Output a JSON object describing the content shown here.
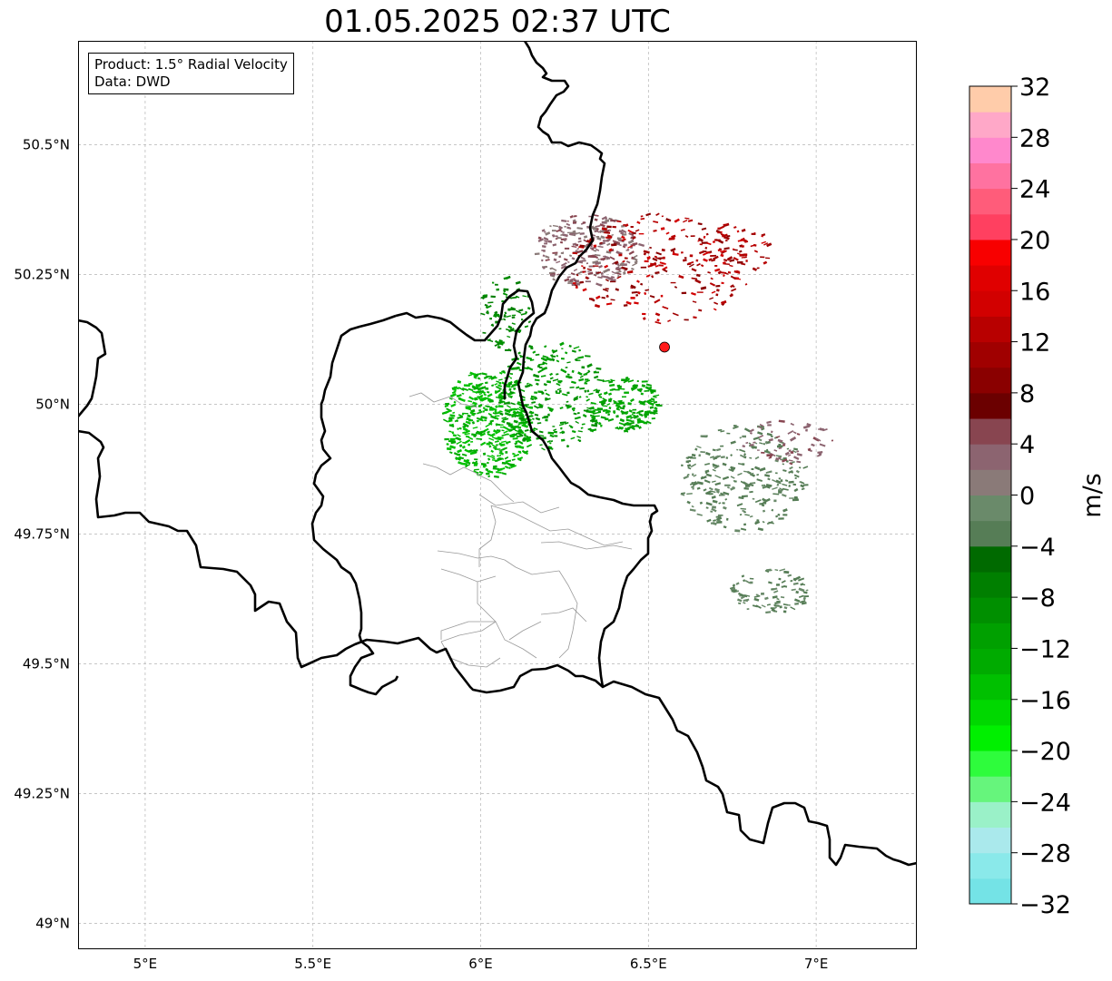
{
  "map": {
    "title": "01.05.2025 02:37 UTC",
    "info_box": {
      "product": "Product: 1.5° Radial Velocity",
      "data": "Data: DWD"
    },
    "lon_range": [
      4.8,
      7.3
    ],
    "lat_range": [
      48.95,
      50.7
    ],
    "lon_ticks": [
      {
        "value": 5.0,
        "label": "5°E"
      },
      {
        "value": 5.5,
        "label": "5.5°E"
      },
      {
        "value": 6.0,
        "label": "6°E"
      },
      {
        "value": 6.5,
        "label": "6.5°E"
      },
      {
        "value": 7.0,
        "label": "7°E"
      }
    ],
    "lat_ticks": [
      {
        "value": 50.5,
        "label": "50.5°N"
      },
      {
        "value": 50.25,
        "label": "50.25°N"
      },
      {
        "value": 50.0,
        "label": "50°N"
      },
      {
        "value": 49.75,
        "label": "49.75°N"
      },
      {
        "value": 49.5,
        "label": "49.5°N"
      },
      {
        "value": 49.25,
        "label": "49.25°N"
      },
      {
        "value": 49.0,
        "label": "49°N"
      }
    ],
    "radar_site": {
      "lon": 6.548,
      "lat": 50.11,
      "color": "#ff1a1a"
    },
    "grid": true
  },
  "colorbar": {
    "unit": "m/s",
    "min": -32,
    "max": 32,
    "tick_values": [
      -32,
      -28,
      -24,
      -20,
      -16,
      -12,
      -8,
      -4,
      0,
      4,
      8,
      12,
      16,
      20,
      24,
      28,
      32
    ],
    "tick_labels": [
      "−32",
      "−28",
      "−24",
      "−20",
      "−16",
      "−12",
      "−8",
      "−4",
      "0",
      "4",
      "8",
      "12",
      "16",
      "20",
      "24",
      "28",
      "32"
    ],
    "colors": [
      "#74e3e6",
      "#8ae9ea",
      "#aae9ec",
      "#9af1c8",
      "#66f57c",
      "#2efc3c",
      "#00f000",
      "#00d800",
      "#00c000",
      "#00ab00",
      "#00a000",
      "#008f00",
      "#007f00",
      "#006a00",
      "#567d56",
      "#6a8a6a",
      "#8a7a78",
      "#8c6470",
      "#884550",
      "#6b0000",
      "#8a0000",
      "#a00000",
      "#b80000",
      "#d20000",
      "#e00000",
      "#f80000",
      "#ff4060",
      "#ff5c7a",
      "#ff72a0",
      "#ff88cc",
      "#ffa8c8",
      "#ffccaa"
    ]
  }
}
